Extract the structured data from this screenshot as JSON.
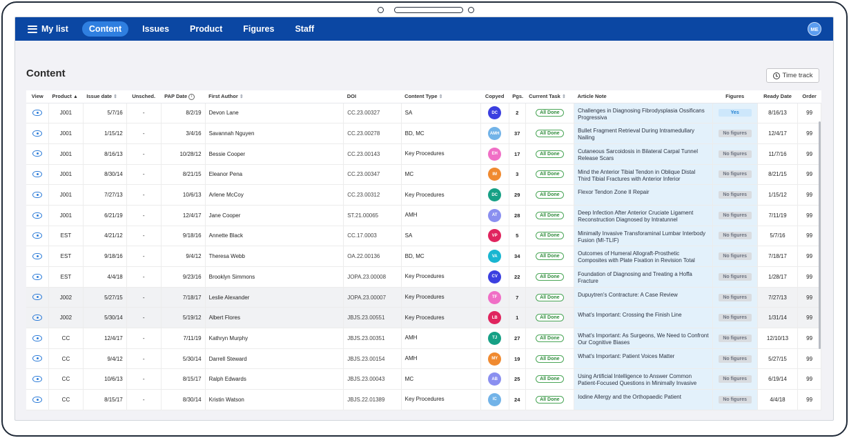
{
  "nav": {
    "brand": "My list",
    "tabs": [
      {
        "label": "Content",
        "active": true
      },
      {
        "label": "Issues",
        "active": false
      },
      {
        "label": "Product",
        "active": false
      },
      {
        "label": "Figures",
        "active": false
      },
      {
        "label": "Staff",
        "active": false
      }
    ],
    "user_initials": "ME"
  },
  "page": {
    "title": "Content",
    "time_track_label": "Time track"
  },
  "table": {
    "columns": [
      "View",
      "Product",
      "Issue date",
      "Unsched.",
      "PAP Date",
      "First Author",
      "DOI",
      "Content Type",
      "Copyed",
      "Pgs.",
      "Current Task",
      "Article Note",
      "Figures",
      "Ready Date",
      "Order"
    ],
    "rows": [
      {
        "product": "J001",
        "issue_date": "5/7/16",
        "unsched": "-",
        "pap_date": "8/2/19",
        "author": "Devon Lane",
        "doi": "CC.23.00327",
        "ctype": "SA",
        "initials": "DC",
        "color": "#3b3fe0",
        "pages": "2",
        "task": "All Done",
        "note": "Challenges in Diagnosing Fibrodysplasia Ossificans Progressiva",
        "figures": "Yes",
        "ready": "8/16/13",
        "order": "99"
      },
      {
        "product": "J001",
        "issue_date": "1/15/12",
        "unsched": "-",
        "pap_date": "3/4/16",
        "author": "Savannah Nguyen",
        "doi": "CC.23.00278",
        "ctype": "BD, MC",
        "initials": "AMH",
        "color": "#72b3e8",
        "pages": "37",
        "task": "All Done",
        "note": "Bullet Fragment Retrieval During Intramedullary Nailing",
        "figures": "No figures",
        "ready": "12/4/17",
        "order": "99"
      },
      {
        "product": "J001",
        "issue_date": "8/16/13",
        "unsched": "-",
        "pap_date": "10/28/12",
        "author": "Bessie Cooper",
        "doi": "CC.23.00143",
        "ctype": "Key Procedures",
        "initials": "EH",
        "color": "#f06fc6",
        "pages": "17",
        "task": "All Done",
        "note": "Cutaneous Sarcoidosis in Bilateral Carpal Tunnel Release Scars",
        "figures": "No figures",
        "ready": "11/7/16",
        "order": "99"
      },
      {
        "product": "J001",
        "issue_date": "8/30/14",
        "unsched": "-",
        "pap_date": "8/21/15",
        "author": "Eleanor Pena",
        "doi": "CC.23.00347",
        "ctype": "MC",
        "initials": "IM",
        "color": "#f08a30",
        "pages": "3",
        "task": "All Done",
        "note": "Mind the Anterior Tibial Tendon in Oblique Distal Third Tibial Fractures with Anterior Inferior",
        "figures": "No figures",
        "ready": "8/21/15",
        "order": "99"
      },
      {
        "product": "J001",
        "issue_date": "7/27/13",
        "unsched": "-",
        "pap_date": "10/6/13",
        "author": "Arlene McCoy",
        "doi": "CC.23.00312",
        "ctype": "Key Procedures",
        "initials": "DC",
        "color": "#16a085",
        "pages": "29",
        "task": "All Done",
        "note": "Flexor Tendon Zone II Repair",
        "figures": "No figures",
        "ready": "1/15/12",
        "order": "99"
      },
      {
        "product": "J001",
        "issue_date": "6/21/19",
        "unsched": "-",
        "pap_date": "12/4/17",
        "author": "Jane Cooper",
        "doi": "ST.21.00065",
        "ctype": "AMH",
        "initials": "AT",
        "color": "#8a8ff0",
        "pages": "28",
        "task": "All Done",
        "note": "Deep Infection After Anterior Cruciate Ligament Reconstruction Diagnosed by Intratunnel",
        "figures": "No figures",
        "ready": "7/11/19",
        "order": "99"
      },
      {
        "product": "EST",
        "issue_date": "4/21/12",
        "unsched": "-",
        "pap_date": "9/18/16",
        "author": "Annette Black",
        "doi": "CC.17.0003",
        "ctype": "SA",
        "initials": "VP",
        "color": "#e0245e",
        "pages": "5",
        "task": "All Done",
        "note": "Minimally Invasive Transforaminal Lumbar Interbody Fusion (MI-TLIF)",
        "figures": "No figures",
        "ready": "5/7/16",
        "order": "99"
      },
      {
        "product": "EST",
        "issue_date": "9/18/16",
        "unsched": "-",
        "pap_date": "9/4/12",
        "author": "Theresa Webb",
        "doi": "OA.22.00136",
        "ctype": "BD, MC",
        "initials": "VA",
        "color": "#19b6d1",
        "pages": "34",
        "task": "All Done",
        "note": "Outcomes of Humeral Allograft-Prosthetic Composites with Plate Fixation in Revision Total",
        "figures": "No figures",
        "ready": "7/18/17",
        "order": "99"
      },
      {
        "product": "EST",
        "issue_date": "4/4/18",
        "unsched": "-",
        "pap_date": "9/23/16",
        "author": "Brooklyn Simmons",
        "doi": "JOPA.23.00008",
        "ctype": "Key Procedures",
        "initials": "CV",
        "color": "#3b3fe0",
        "pages": "22",
        "task": "All Done",
        "note": "Foundation of Diagnosing and Treating a Hoffa Fracture",
        "figures": "No figures",
        "ready": "1/28/17",
        "order": "99"
      },
      {
        "product": "J002",
        "issue_date": "5/27/15",
        "unsched": "-",
        "pap_date": "7/18/17",
        "author": "Leslie Alexander",
        "doi": "JOPA.23.00007",
        "ctype": "Key Procedures",
        "initials": "TF",
        "color": "#f06fc6",
        "pages": "7",
        "task": "All Done",
        "note": "Dupuytren's Contracture: A Case Review",
        "figures": "No figures",
        "ready": "7/27/13",
        "order": "99"
      },
      {
        "product": "J002",
        "issue_date": "5/30/14",
        "unsched": "-",
        "pap_date": "5/19/12",
        "author": "Albert Flores",
        "doi": "JBJS.23.00551",
        "ctype": "Key Procedures",
        "initials": "LB",
        "color": "#e0245e",
        "pages": "1",
        "task": "All Done",
        "note": "What's Important: Crossing the Finish Line",
        "figures": "No figures",
        "ready": "1/31/14",
        "order": "99"
      },
      {
        "product": "CC",
        "issue_date": "12/4/17",
        "unsched": "-",
        "pap_date": "7/11/19",
        "author": "Kathryn Murphy",
        "doi": "JBJS.23.00351",
        "ctype": "AMH",
        "initials": "TJ",
        "color": "#16a085",
        "pages": "27",
        "task": "All Done",
        "note": "What's Important: As Surgeons, We Need to Confront Our Cognitive Biases",
        "figures": "No figures",
        "ready": "12/10/13",
        "order": "99"
      },
      {
        "product": "CC",
        "issue_date": "9/4/12",
        "unsched": "-",
        "pap_date": "5/30/14",
        "author": "Darrell Steward",
        "doi": "JBJS.23.00154",
        "ctype": "AMH",
        "initials": "MY",
        "color": "#f08a30",
        "pages": "19",
        "task": "All Done",
        "note": "What's Important: Patient Voices Matter",
        "figures": "No figures",
        "ready": "5/27/15",
        "order": "99"
      },
      {
        "product": "CC",
        "issue_date": "10/6/13",
        "unsched": "-",
        "pap_date": "8/15/17",
        "author": "Ralph Edwards",
        "doi": "JBJS.23.00043",
        "ctype": "MC",
        "initials": "AB",
        "color": "#8a8ff0",
        "pages": "25",
        "task": "All Done",
        "note": "Using Artificial Intelligence to Answer Common Patient-Focused Questions in Minimally Invasive",
        "figures": "No figures",
        "ready": "6/19/14",
        "order": "99"
      },
      {
        "product": "CC",
        "issue_date": "8/15/17",
        "unsched": "-",
        "pap_date": "8/30/14",
        "author": "Kristin Watson",
        "doi": "JBJS.22.01389",
        "ctype": "Key Procedures",
        "initials": "IC",
        "color": "#72b3e8",
        "pages": "24",
        "task": "All Done",
        "note": "Iodine Allergy and the Orthopaedic Patient",
        "figures": "No figures",
        "ready": "4/4/18",
        "order": "99"
      }
    ]
  }
}
